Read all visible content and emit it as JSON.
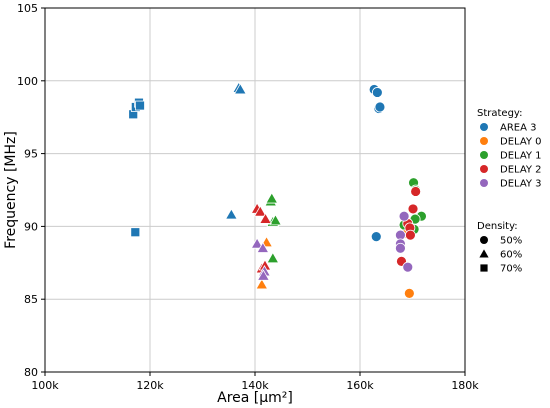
{
  "chart_data": {
    "type": "scatter",
    "xlabel": "Area [µm²]",
    "ylabel": "Frequency [MHz]",
    "xlim": [
      100000,
      180000
    ],
    "ylim": [
      80,
      105
    ],
    "x_ticks": [
      100000,
      120000,
      140000,
      160000,
      180000
    ],
    "x_tick_labels": [
      "100k",
      "120k",
      "140k",
      "160k",
      "180k"
    ],
    "y_ticks": [
      80,
      85,
      90,
      95,
      100,
      105
    ],
    "y_tick_labels": [
      "80",
      "85",
      "90",
      "95",
      "100",
      "105"
    ],
    "grid": true,
    "legend_placement": "right",
    "hue_title": "Strategy:",
    "style_title": "Density:",
    "strategies": [
      {
        "name": "AREA 3",
        "color": "#1f77b4"
      },
      {
        "name": "DELAY 0",
        "color": "#ff7f0e"
      },
      {
        "name": "DELAY 1",
        "color": "#2ca02c"
      },
      {
        "name": "DELAY 2",
        "color": "#d62728"
      },
      {
        "name": "DELAY 3",
        "color": "#9467bd"
      }
    ],
    "densities": [
      {
        "name": "50%",
        "marker": "circle"
      },
      {
        "name": "60%",
        "marker": "triangle"
      },
      {
        "name": "70%",
        "marker": "square"
      }
    ],
    "points": [
      {
        "x": 116800,
        "y": 97.7,
        "strategy": "AREA 3",
        "density": "70%"
      },
      {
        "x": 117300,
        "y": 98.2,
        "strategy": "AREA 3",
        "density": "70%"
      },
      {
        "x": 117900,
        "y": 98.5,
        "strategy": "AREA 3",
        "density": "70%"
      },
      {
        "x": 118100,
        "y": 98.3,
        "strategy": "AREA 3",
        "density": "70%"
      },
      {
        "x": 117200,
        "y": 89.6,
        "strategy": "AREA 3",
        "density": "70%"
      },
      {
        "x": 136900,
        "y": 99.5,
        "strategy": "AREA 3",
        "density": "60%"
      },
      {
        "x": 137200,
        "y": 99.4,
        "strategy": "AREA 3",
        "density": "60%"
      },
      {
        "x": 135500,
        "y": 90.8,
        "strategy": "AREA 3",
        "density": "60%"
      },
      {
        "x": 162700,
        "y": 99.4,
        "strategy": "AREA 3",
        "density": "50%"
      },
      {
        "x": 163300,
        "y": 99.2,
        "strategy": "AREA 3",
        "density": "50%"
      },
      {
        "x": 163600,
        "y": 98.1,
        "strategy": "AREA 3",
        "density": "50%"
      },
      {
        "x": 163800,
        "y": 98.2,
        "strategy": "AREA 3",
        "density": "50%"
      },
      {
        "x": 163100,
        "y": 89.3,
        "strategy": "AREA 3",
        "density": "50%"
      },
      {
        "x": 141300,
        "y": 86.0,
        "strategy": "DELAY 0",
        "density": "60%"
      },
      {
        "x": 142200,
        "y": 88.9,
        "strategy": "DELAY 0",
        "density": "60%"
      },
      {
        "x": 169400,
        "y": 85.4,
        "strategy": "DELAY 0",
        "density": "50%"
      },
      {
        "x": 168900,
        "y": 89.5,
        "strategy": "DELAY 0",
        "density": "50%"
      },
      {
        "x": 143000,
        "y": 91.7,
        "strategy": "DELAY 1",
        "density": "60%"
      },
      {
        "x": 143200,
        "y": 91.9,
        "strategy": "DELAY 1",
        "density": "60%"
      },
      {
        "x": 143400,
        "y": 90.3,
        "strategy": "DELAY 1",
        "density": "60%"
      },
      {
        "x": 143900,
        "y": 90.4,
        "strategy": "DELAY 1",
        "density": "60%"
      },
      {
        "x": 143400,
        "y": 87.8,
        "strategy": "DELAY 1",
        "density": "60%"
      },
      {
        "x": 170200,
        "y": 93.0,
        "strategy": "DELAY 1",
        "density": "50%"
      },
      {
        "x": 170600,
        "y": 92.5,
        "strategy": "DELAY 1",
        "density": "50%"
      },
      {
        "x": 171700,
        "y": 90.7,
        "strategy": "DELAY 1",
        "density": "50%"
      },
      {
        "x": 170500,
        "y": 90.5,
        "strategy": "DELAY 1",
        "density": "50%"
      },
      {
        "x": 168400,
        "y": 90.1,
        "strategy": "DELAY 1",
        "density": "50%"
      },
      {
        "x": 170300,
        "y": 89.8,
        "strategy": "DELAY 1",
        "density": "50%"
      },
      {
        "x": 140400,
        "y": 91.2,
        "strategy": "DELAY 2",
        "density": "60%"
      },
      {
        "x": 141000,
        "y": 91.0,
        "strategy": "DELAY 2",
        "density": "60%"
      },
      {
        "x": 142000,
        "y": 90.5,
        "strategy": "DELAY 2",
        "density": "60%"
      },
      {
        "x": 141300,
        "y": 87.1,
        "strategy": "DELAY 2",
        "density": "60%"
      },
      {
        "x": 141900,
        "y": 87.3,
        "strategy": "DELAY 2",
        "density": "60%"
      },
      {
        "x": 170100,
        "y": 91.2,
        "strategy": "DELAY 2",
        "density": "50%"
      },
      {
        "x": 170600,
        "y": 92.4,
        "strategy": "DELAY 2",
        "density": "50%"
      },
      {
        "x": 169100,
        "y": 90.2,
        "strategy": "DELAY 2",
        "density": "50%"
      },
      {
        "x": 169500,
        "y": 89.9,
        "strategy": "DELAY 2",
        "density": "50%"
      },
      {
        "x": 169600,
        "y": 89.4,
        "strategy": "DELAY 2",
        "density": "50%"
      },
      {
        "x": 167900,
        "y": 87.6,
        "strategy": "DELAY 2",
        "density": "50%"
      },
      {
        "x": 140400,
        "y": 88.8,
        "strategy": "DELAY 3",
        "density": "60%"
      },
      {
        "x": 141500,
        "y": 88.5,
        "strategy": "DELAY 3",
        "density": "60%"
      },
      {
        "x": 141800,
        "y": 86.9,
        "strategy": "DELAY 3",
        "density": "60%"
      },
      {
        "x": 141600,
        "y": 86.6,
        "strategy": "DELAY 3",
        "density": "60%"
      },
      {
        "x": 168400,
        "y": 90.7,
        "strategy": "DELAY 3",
        "density": "50%"
      },
      {
        "x": 167700,
        "y": 89.4,
        "strategy": "DELAY 3",
        "density": "50%"
      },
      {
        "x": 167700,
        "y": 88.8,
        "strategy": "DELAY 3",
        "density": "50%"
      },
      {
        "x": 167700,
        "y": 88.5,
        "strategy": "DELAY 3",
        "density": "50%"
      },
      {
        "x": 169100,
        "y": 87.2,
        "strategy": "DELAY 3",
        "density": "50%"
      }
    ]
  }
}
